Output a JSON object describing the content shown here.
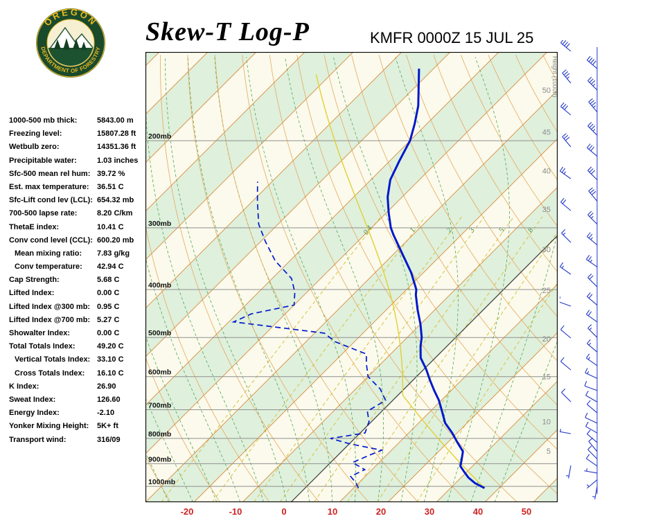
{
  "header": {
    "title": "Skew-T Log-P",
    "station_line": "KMFR 0000Z 15 JUL 25",
    "logo": {
      "top": "OREGON",
      "bottom": "DEPARTMENT OF FORESTRY"
    }
  },
  "indices": {
    "rows": [
      {
        "label": "1000-500 mb thick:",
        "value": "5843.00 m",
        "indent": false
      },
      {
        "label": "Freezing level:",
        "value": "15807.28 ft",
        "indent": false
      },
      {
        "label": "Wetbulb zero:",
        "value": "14351.36 ft",
        "indent": false
      },
      {
        "label": "Precipitable water:",
        "value": "1.03 inches",
        "indent": false
      },
      {
        "label": "Sfc-500 mean rel hum:",
        "value": "39.72 %",
        "indent": false
      },
      {
        "label": "Est. max temperature:",
        "value": "36.51 C",
        "indent": false
      },
      {
        "label": "Sfc-Lift cond lev (LCL):",
        "value": "654.32 mb",
        "indent": false
      },
      {
        "label": "700-500 lapse rate:",
        "value": "8.20 C/km",
        "indent": false
      },
      {
        "label": "ThetaE index:",
        "value": "10.41 C",
        "indent": false
      },
      {
        "label": "Conv cond level (CCL):",
        "value": "600.20 mb",
        "indent": false
      },
      {
        "label": "Mean mixing ratio:",
        "value": "7.83 g/kg",
        "indent": true
      },
      {
        "label": "Conv temperature:",
        "value": "42.94 C",
        "indent": true
      },
      {
        "label": "Cap Strength:",
        "value": "5.68 C",
        "indent": false
      },
      {
        "label": "Lifted Index:",
        "value": "0.00 C",
        "indent": false
      },
      {
        "label": "Lifted Index @300 mb:",
        "value": "0.95 C",
        "indent": false
      },
      {
        "label": "Lifted Index @700 mb:",
        "value": "5.27 C",
        "indent": false
      },
      {
        "label": "Showalter Index:",
        "value": "0.00 C",
        "indent": false
      },
      {
        "label": "Total Totals Index:",
        "value": "49.20 C",
        "indent": false
      },
      {
        "label": "Vertical Totals Index:",
        "value": "33.10 C",
        "indent": true
      },
      {
        "label": "Cross Totals Index:",
        "value": "16.10 C",
        "indent": true
      },
      {
        "label": "K Index:",
        "value": "26.90",
        "indent": false
      },
      {
        "label": "Sweat Index:",
        "value": "126.60",
        "indent": false
      },
      {
        "label": "Energy Index:",
        "value": "-2.10",
        "indent": false
      },
      {
        "label": "Yonker Mixing Height:",
        "value": "5K+ ft",
        "indent": false
      },
      {
        "label": "Transport wind:",
        "value": "316/09",
        "indent": false
      }
    ]
  },
  "colors": {
    "trace": "#0018cc",
    "isotherm": "#d98a3a",
    "zero_isotherm": "#3a3a3a",
    "dry_adiabat": "#e6a85c",
    "moist_adiabat": "#4aa34a",
    "mixing": "#d8c23c",
    "mixing_label": "#3d8b3d",
    "band": "#dff0dd",
    "chart_bg": "#fbfaec",
    "pressure_line": "#909090",
    "axis_red": "#cc2222",
    "wind": "#2035c8",
    "parcel": "#e3cf35",
    "height_label": "#8a8a8a",
    "frame": "#000000"
  },
  "chart_data": {
    "type": "skewt-log-p",
    "station": "KMFR",
    "valid_time": "0000Z 15 JUL 25",
    "pressure_lines_mb": [
      200,
      300,
      400,
      500,
      600,
      700,
      800,
      900,
      1000
    ],
    "temp_axis_c": [
      -20,
      -10,
      0,
      10,
      20,
      30,
      40,
      50
    ],
    "isotherm_step_c": 10,
    "dry_adiabats_c": {
      "from": -30,
      "to": 230,
      "step": 10
    },
    "moist_adiabats_c": {
      "from": -35,
      "to": 40,
      "step": 5
    },
    "mixing_ratio_lines_gkg": [
      0.4,
      1,
      2,
      3,
      5,
      8,
      12,
      20
    ],
    "mixing_ratio_labels": [
      "0.4",
      "1",
      "2",
      "3",
      "5",
      "8"
    ],
    "height_axis_label": "Height (1000ft)",
    "height_scale_kft": [
      {
        "kft": "50",
        "p": 158
      },
      {
        "kft": "45",
        "p": 192
      },
      {
        "kft": "40",
        "p": 230
      },
      {
        "kft": "35",
        "p": 275
      },
      {
        "kft": "30",
        "p": 332
      },
      {
        "kft": "25",
        "p": 401
      },
      {
        "kft": "20",
        "p": 503
      },
      {
        "kft": "15",
        "p": 600
      },
      {
        "kft": "10",
        "p": 740
      },
      {
        "kft": "5",
        "p": 848
      }
    ],
    "temperature_profile": [
      {
        "p": 1008,
        "t": 37.0
      },
      {
        "p": 985,
        "t": 34.0
      },
      {
        "p": 960,
        "t": 31.5
      },
      {
        "p": 935,
        "t": 29.5
      },
      {
        "p": 910,
        "t": 27.5
      },
      {
        "p": 885,
        "t": 26.5
      },
      {
        "p": 850,
        "t": 25.0
      },
      {
        "p": 815,
        "t": 22.0
      },
      {
        "p": 780,
        "t": 19.0
      },
      {
        "p": 745,
        "t": 15.5
      },
      {
        "p": 700,
        "t": 12.0
      },
      {
        "p": 670,
        "t": 9.5
      },
      {
        "p": 640,
        "t": 6.5
      },
      {
        "p": 610,
        "t": 3.5
      },
      {
        "p": 580,
        "t": 0.5
      },
      {
        "p": 550,
        "t": -3.0
      },
      {
        "p": 520,
        "t": -5.5
      },
      {
        "p": 500,
        "t": -7.0
      },
      {
        "p": 470,
        "t": -10.0
      },
      {
        "p": 440,
        "t": -13.5
      },
      {
        "p": 410,
        "t": -17.0
      },
      {
        "p": 400,
        "t": -18.0
      },
      {
        "p": 370,
        "t": -22.5
      },
      {
        "p": 340,
        "t": -28.0
      },
      {
        "p": 310,
        "t": -34.0
      },
      {
        "p": 300,
        "t": -36.0
      },
      {
        "p": 280,
        "t": -39.5
      },
      {
        "p": 260,
        "t": -43.0
      },
      {
        "p": 240,
        "t": -46.0
      },
      {
        "p": 220,
        "t": -48.0
      },
      {
        "p": 200,
        "t": -50.0
      },
      {
        "p": 185,
        "t": -52.5
      },
      {
        "p": 170,
        "t": -55.5
      },
      {
        "p": 155,
        "t": -59.5
      },
      {
        "p": 143,
        "t": -63.0
      }
    ],
    "dewpoint_profile": [
      {
        "p": 1008,
        "td": 11.0
      },
      {
        "p": 985,
        "td": 9.5
      },
      {
        "p": 955,
        "td": 7.0
      },
      {
        "p": 925,
        "td": 8.5
      },
      {
        "p": 895,
        "td": 4.5
      },
      {
        "p": 865,
        "td": 6.5
      },
      {
        "p": 845,
        "td": 8.0
      },
      {
        "p": 820,
        "td": 0.0
      },
      {
        "p": 800,
        "td": -5.0
      },
      {
        "p": 780,
        "td": 1.0
      },
      {
        "p": 740,
        "td": -0.5
      },
      {
        "p": 705,
        "td": -3.0
      },
      {
        "p": 670,
        "td": -1.5
      },
      {
        "p": 635,
        "td": -5.0
      },
      {
        "p": 600,
        "td": -10.0
      },
      {
        "p": 565,
        "td": -13.0
      },
      {
        "p": 540,
        "td": -15.0
      },
      {
        "p": 510,
        "td": -24.0
      },
      {
        "p": 490,
        "td": -28.0
      },
      {
        "p": 465,
        "td": -49.0
      },
      {
        "p": 448,
        "td": -47.0
      },
      {
        "p": 430,
        "td": -40.0
      },
      {
        "p": 405,
        "td": -42.5
      },
      {
        "p": 380,
        "td": -46.0
      },
      {
        "p": 350,
        "td": -53.0
      },
      {
        "p": 320,
        "td": -59.0
      },
      {
        "p": 295,
        "td": -64.0
      },
      {
        "p": 265,
        "td": -69.0
      },
      {
        "p": 242,
        "td": -73.0
      }
    ],
    "parcel": {
      "surface_p": 1008,
      "surface_t": 37,
      "lcl_p": 654
    },
    "winds": [
      {
        "p": 1000,
        "dir": 190,
        "spd": 4
      },
      {
        "p": 970,
        "dir": 230,
        "spd": 5
      },
      {
        "p": 940,
        "dir": 280,
        "spd": 5
      },
      {
        "p": 910,
        "dir": 305,
        "spd": 8
      },
      {
        "p": 880,
        "dir": 315,
        "spd": 9
      },
      {
        "p": 850,
        "dir": 320,
        "spd": 10
      },
      {
        "p": 815,
        "dir": 310,
        "spd": 8
      },
      {
        "p": 780,
        "dir": 300,
        "spd": 9
      },
      {
        "p": 745,
        "dir": 295,
        "spd": 10
      },
      {
        "p": 710,
        "dir": 310,
        "spd": 12
      },
      {
        "p": 675,
        "dir": 300,
        "spd": 10
      },
      {
        "p": 640,
        "dir": 290,
        "spd": 12
      },
      {
        "p": 605,
        "dir": 295,
        "spd": 14
      },
      {
        "p": 570,
        "dir": 305,
        "spd": 15
      },
      {
        "p": 535,
        "dir": 310,
        "spd": 15
      },
      {
        "p": 500,
        "dir": 315,
        "spd": 17
      },
      {
        "p": 465,
        "dir": 305,
        "spd": 18
      },
      {
        "p": 430,
        "dir": 310,
        "spd": 20
      },
      {
        "p": 395,
        "dir": 315,
        "spd": 22
      },
      {
        "p": 360,
        "dir": 305,
        "spd": 24
      },
      {
        "p": 325,
        "dir": 310,
        "spd": 25
      },
      {
        "p": 295,
        "dir": 315,
        "spd": 27
      },
      {
        "p": 265,
        "dir": 320,
        "spd": 28
      },
      {
        "p": 240,
        "dir": 315,
        "spd": 30
      },
      {
        "p": 215,
        "dir": 310,
        "spd": 32
      },
      {
        "p": 195,
        "dir": 315,
        "spd": 33
      },
      {
        "p": 175,
        "dir": 320,
        "spd": 35
      },
      {
        "p": 158,
        "dir": 315,
        "spd": 35
      },
      {
        "p": 143,
        "dir": 310,
        "spd": 38
      }
    ]
  }
}
